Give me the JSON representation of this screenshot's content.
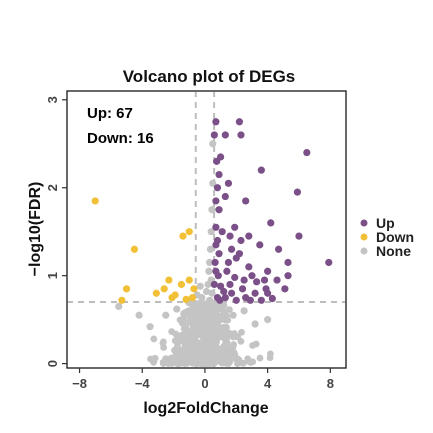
{
  "chart_data": {
    "type": "scatter",
    "title": "Volcano plot of DEGs",
    "xlabel": "log2FoldChange",
    "ylabel": "−log10(FDR)",
    "xlim": [
      -8.8,
      9
    ],
    "ylim": [
      -0.05,
      3.1
    ],
    "xticks": [
      -8,
      -4,
      0,
      4,
      8
    ],
    "yticks": [
      0,
      1,
      2,
      3
    ],
    "xtick_labels": [
      "−8",
      "−4",
      "0",
      "4",
      "8"
    ],
    "ytick_labels": [
      "0",
      "1",
      "2",
      "3"
    ],
    "grid": false,
    "thresholds": {
      "log2fc": [
        -0.585,
        0.585
      ],
      "neg_log10_fdr": 0.7
    },
    "annotations": [
      "Up: 67",
      "Down: 16"
    ],
    "legend": {
      "position": "right",
      "entries": [
        "Up",
        "Down",
        "None"
      ]
    },
    "colors": {
      "Up": "#7b5088",
      "Down": "#f2c037",
      "None": "#c4c4c4"
    },
    "series": [
      {
        "name": "Up",
        "color": "#7b5088",
        "points": [
          [
            0.7,
            2.75
          ],
          [
            2.2,
            2.75
          ],
          [
            0.6,
            2.6
          ],
          [
            1.3,
            2.6
          ],
          [
            2.3,
            2.6
          ],
          [
            1.0,
            2.35
          ],
          [
            6.5,
            2.4
          ],
          [
            0.9,
            2.15
          ],
          [
            3.6,
            2.2
          ],
          [
            0.8,
            2.0
          ],
          [
            1.5,
            2.05
          ],
          [
            5.9,
            1.95
          ],
          [
            0.7,
            1.85
          ],
          [
            0.9,
            1.75
          ],
          [
            2.6,
            1.85
          ],
          [
            0.7,
            1.55
          ],
          [
            1.9,
            1.55
          ],
          [
            4.2,
            1.6
          ],
          [
            0.8,
            1.4
          ],
          [
            1.6,
            1.45
          ],
          [
            2.3,
            1.4
          ],
          [
            3.5,
            1.35
          ],
          [
            6.0,
            1.45
          ],
          [
            0.9,
            1.25
          ],
          [
            2.2,
            1.25
          ],
          [
            4.7,
            1.3
          ],
          [
            5.3,
            1.15
          ],
          [
            7.9,
            1.15
          ],
          [
            0.7,
            1.05
          ],
          [
            1.4,
            1.05
          ],
          [
            2.8,
            1.1
          ],
          [
            3.8,
            0.95
          ],
          [
            4.6,
            0.95
          ],
          [
            5.3,
            1.0
          ],
          [
            0.6,
            0.9
          ],
          [
            1.6,
            0.9
          ],
          [
            2.4,
            0.85
          ],
          [
            3.2,
            0.8
          ],
          [
            4.0,
            0.8
          ],
          [
            5.1,
            0.85
          ],
          [
            0.8,
            0.75
          ],
          [
            1.3,
            0.75
          ],
          [
            2.0,
            0.72
          ],
          [
            2.9,
            0.72
          ],
          [
            3.6,
            0.72
          ],
          [
            4.3,
            0.74
          ],
          [
            1.7,
            0.8
          ],
          [
            0.65,
            1.15
          ],
          [
            1.1,
            1.5
          ],
          [
            1.2,
            0.82
          ],
          [
            2.5,
            0.95
          ],
          [
            3.3,
            0.93
          ],
          [
            0.75,
            2.3
          ],
          [
            1.3,
            1.9
          ],
          [
            2.0,
            1.2
          ],
          [
            4.0,
            1.05
          ],
          [
            1.5,
            1.15
          ],
          [
            0.85,
            1.0
          ],
          [
            2.6,
            0.75
          ],
          [
            3.9,
            0.85
          ],
          [
            0.95,
            0.72
          ],
          [
            1.9,
            0.98
          ],
          [
            1.7,
            1.3
          ],
          [
            3.0,
            1.0
          ],
          [
            2.8,
            1.45
          ],
          [
            0.7,
            1.35
          ],
          [
            1.0,
            0.88
          ]
        ]
      },
      {
        "name": "Down",
        "color": "#f2c037",
        "points": [
          [
            -7.0,
            1.85
          ],
          [
            -4.5,
            1.3
          ],
          [
            -1.4,
            1.45
          ],
          [
            -1.0,
            1.5
          ],
          [
            -5.0,
            0.85
          ],
          [
            -2.3,
            0.95
          ],
          [
            -1.5,
            0.9
          ],
          [
            -1.0,
            0.95
          ],
          [
            -0.7,
            0.85
          ],
          [
            -3.1,
            0.8
          ],
          [
            -2.6,
            0.85
          ],
          [
            -1.9,
            0.78
          ],
          [
            -2.1,
            0.75
          ],
          [
            -1.2,
            0.73
          ],
          [
            -0.8,
            0.75
          ],
          [
            -5.3,
            0.72
          ]
        ]
      },
      {
        "name": "None",
        "color": "#c4c4c4",
        "points": [
          [
            0.5,
            2.5
          ],
          [
            0.5,
            2.05
          ],
          [
            0.45,
            1.75
          ],
          [
            0.4,
            1.5
          ],
          [
            0.35,
            1.3
          ],
          [
            0.3,
            1.15
          ],
          [
            0.25,
            1.05
          ],
          [
            0.4,
            0.95
          ],
          [
            0.2,
            0.9
          ],
          [
            -0.3,
            0.88
          ],
          [
            0.1,
            0.82
          ],
          [
            -0.5,
            0.78
          ],
          [
            0.45,
            0.8
          ],
          [
            -0.2,
            0.75
          ],
          [
            0.3,
            0.72
          ],
          [
            -5.5,
            0.65
          ],
          [
            -4.2,
            0.55
          ],
          [
            4.0,
            0.5
          ],
          [
            3.2,
            0.45
          ],
          [
            -3.5,
            0.42
          ],
          [
            2.5,
            0.6
          ],
          [
            -2.5,
            0.55
          ],
          [
            1.8,
            0.55
          ],
          [
            -1.8,
            0.62
          ],
          [
            1.2,
            0.66
          ],
          [
            -1.0,
            0.6
          ],
          [
            0.8,
            0.62
          ]
        ]
      }
    ],
    "none_cloud": {
      "count": 520,
      "x_center": 0,
      "x_spread": 1.4,
      "y_max": 0.7,
      "seed": 7
    }
  }
}
